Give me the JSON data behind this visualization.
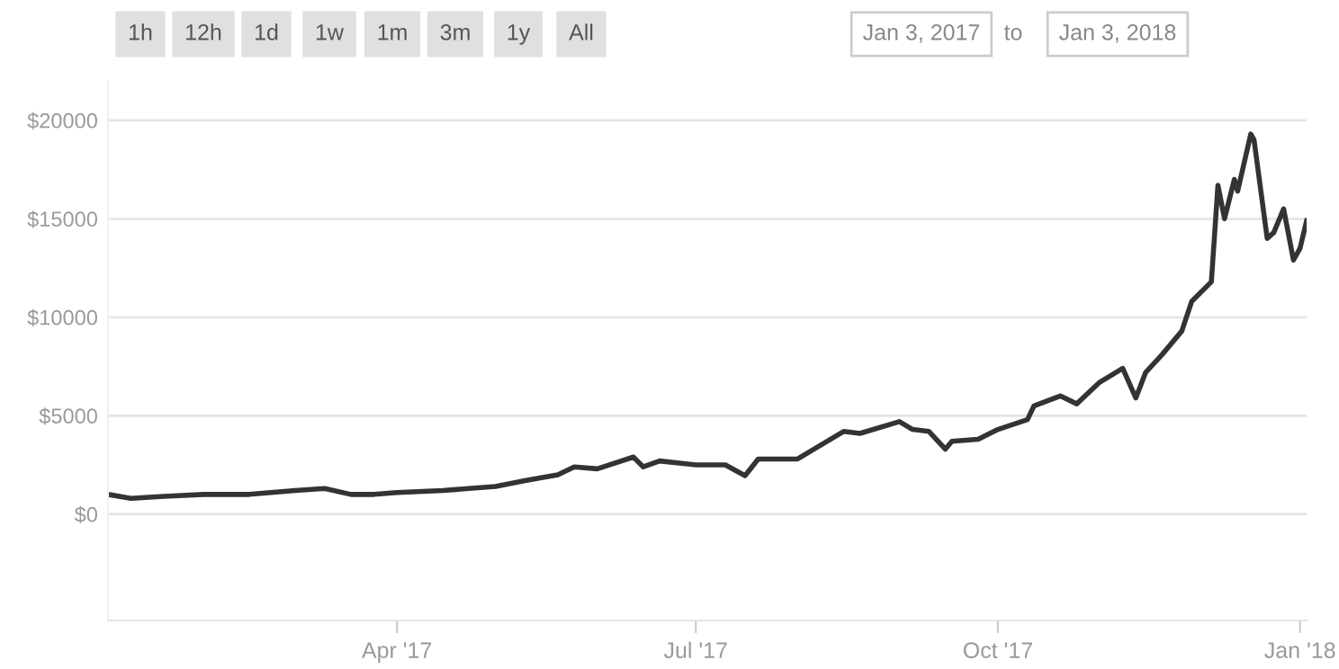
{
  "chart_data": {
    "type": "line",
    "x": [
      "2017-01-03",
      "2017-01-10",
      "2017-01-20",
      "2017-02-01",
      "2017-02-15",
      "2017-03-01",
      "2017-03-10",
      "2017-03-18",
      "2017-03-25",
      "2017-04-01",
      "2017-04-15",
      "2017-05-01",
      "2017-05-10",
      "2017-05-20",
      "2017-05-25",
      "2017-06-01",
      "2017-06-12",
      "2017-06-15",
      "2017-06-20",
      "2017-07-01",
      "2017-07-10",
      "2017-07-16",
      "2017-07-20",
      "2017-08-01",
      "2017-08-05",
      "2017-08-15",
      "2017-08-20",
      "2017-09-01",
      "2017-09-05",
      "2017-09-10",
      "2017-09-15",
      "2017-09-17",
      "2017-09-25",
      "2017-10-01",
      "2017-10-10",
      "2017-10-12",
      "2017-10-20",
      "2017-10-25",
      "2017-11-01",
      "2017-11-08",
      "2017-11-12",
      "2017-11-15",
      "2017-11-20",
      "2017-11-26",
      "2017-11-29",
      "2017-12-05",
      "2017-12-07",
      "2017-12-09",
      "2017-12-12",
      "2017-12-13",
      "2017-12-17",
      "2017-12-18",
      "2017-12-22",
      "2017-12-24",
      "2017-12-27",
      "2017-12-30",
      "2018-01-01",
      "2018-01-03"
    ],
    "series": [
      {
        "color": "#333333",
        "values": [
          1000,
          800,
          900,
          1000,
          1000,
          1200,
          1300,
          1000,
          1000,
          1100,
          1200,
          1400,
          1700,
          2000,
          2400,
          2300,
          2900,
          2400,
          2700,
          2500,
          2500,
          1950,
          2800,
          2800,
          3200,
          4200,
          4100,
          4700,
          4300,
          4200,
          3300,
          3700,
          3800,
          4300,
          4800,
          5500,
          6000,
          5600,
          6700,
          7400,
          5900,
          7200,
          8100,
          9300,
          10800,
          11800,
          16700,
          15000,
          17000,
          16400,
          19300,
          19000,
          14000,
          14300,
          15500,
          12900,
          13500,
          14900
        ]
      }
    ],
    "xlim": [
      "2017-01-03",
      "2018-01-03"
    ],
    "xticks": [
      {
        "value": "2017-04-01",
        "label": "Apr '17"
      },
      {
        "value": "2017-07-01",
        "label": "Jul '17"
      },
      {
        "value": "2017-10-01",
        "label": "Oct '17"
      },
      {
        "value": "2018-01-01",
        "label": "Jan '18"
      }
    ],
    "ylim": [
      -5400,
      22000
    ],
    "yticks": [
      {
        "value": 0,
        "label": "$0"
      },
      {
        "value": 5000,
        "label": "$5000"
      },
      {
        "value": 10000,
        "label": "$10000"
      },
      {
        "value": 15000,
        "label": "$15000"
      },
      {
        "value": 20000,
        "label": "$20000"
      }
    ],
    "grid": "y",
    "annotations": [
      "1h",
      "12h",
      "1d",
      "1w",
      "1m",
      "3m",
      "1y",
      "All",
      "Jan 3, 2017",
      "to",
      "Jan 3, 2018"
    ]
  }
}
